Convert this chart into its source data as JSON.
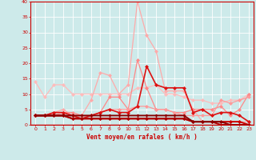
{
  "xlabel": "Vent moyen/en rafales ( km/h )",
  "xlim": [
    -0.5,
    23.5
  ],
  "ylim": [
    0,
    40
  ],
  "yticks": [
    0,
    5,
    10,
    15,
    20,
    25,
    30,
    35,
    40
  ],
  "xticks": [
    0,
    1,
    2,
    3,
    4,
    5,
    6,
    7,
    8,
    9,
    10,
    11,
    12,
    13,
    14,
    15,
    16,
    17,
    18,
    19,
    20,
    21,
    22,
    23
  ],
  "background_color": "#cdeaea",
  "grid_color": "#ffffff",
  "series": [
    {
      "x": [
        0,
        1,
        2,
        3,
        4,
        5,
        6,
        7,
        8,
        9,
        10,
        11,
        12,
        13,
        14,
        15,
        16,
        17,
        18,
        19,
        20,
        21,
        22,
        23
      ],
      "y": [
        14,
        9,
        13,
        13,
        10,
        10,
        10,
        10,
        10,
        10,
        10,
        12,
        12,
        13,
        10,
        10,
        9,
        8,
        8,
        7,
        7,
        8,
        8,
        10
      ],
      "color": "#ffbbbb",
      "lw": 0.9,
      "ms": 2.5
    },
    {
      "x": [
        0,
        1,
        2,
        3,
        4,
        5,
        6,
        7,
        8,
        9,
        10,
        11,
        12,
        13,
        14,
        15,
        16,
        17,
        18,
        19,
        20,
        21,
        22,
        23
      ],
      "y": [
        3,
        3,
        4,
        5,
        3,
        3,
        8,
        17,
        16,
        10,
        13,
        40,
        29,
        24,
        11,
        11,
        11,
        5,
        1,
        1,
        1,
        1,
        1,
        1
      ],
      "color": "#ffaaaa",
      "lw": 0.9,
      "ms": 2.5
    },
    {
      "x": [
        0,
        1,
        2,
        3,
        4,
        5,
        6,
        7,
        8,
        9,
        10,
        11,
        12,
        13,
        14,
        15,
        16,
        17,
        18,
        19,
        20,
        21,
        22,
        23
      ],
      "y": [
        3,
        3,
        4,
        4,
        4,
        3,
        3,
        4,
        9,
        9,
        5,
        21,
        12,
        5,
        5,
        4,
        4,
        5,
        5,
        5,
        6,
        3,
        5,
        10
      ],
      "color": "#ff8888",
      "lw": 0.9,
      "ms": 2.5
    },
    {
      "x": [
        0,
        1,
        2,
        3,
        4,
        5,
        6,
        7,
        8,
        9,
        10,
        11,
        12,
        13,
        14,
        15,
        16,
        17,
        18,
        19,
        20,
        21,
        22,
        23
      ],
      "y": [
        3,
        3,
        3,
        4,
        3,
        3,
        3,
        4,
        5,
        5,
        5,
        6,
        6,
        5,
        5,
        4,
        3,
        3,
        3,
        3,
        8,
        7,
        8,
        9
      ],
      "color": "#ff9999",
      "lw": 0.9,
      "ms": 2.5
    },
    {
      "x": [
        0,
        1,
        2,
        3,
        4,
        5,
        6,
        7,
        8,
        9,
        10,
        11,
        12,
        13,
        14,
        15,
        16,
        17,
        18,
        19,
        20,
        21,
        22,
        23
      ],
      "y": [
        3,
        3,
        4,
        4,
        3,
        2,
        3,
        4,
        5,
        4,
        4,
        6,
        19,
        13,
        12,
        12,
        12,
        4,
        5,
        3,
        4,
        4,
        3,
        1
      ],
      "color": "#dd1111",
      "lw": 1.2,
      "ms": 2.5
    },
    {
      "x": [
        0,
        1,
        2,
        3,
        4,
        5,
        6,
        7,
        8,
        9,
        10,
        11,
        12,
        13,
        14,
        15,
        16,
        17,
        18,
        19,
        20,
        21,
        22,
        23
      ],
      "y": [
        3,
        3,
        3,
        3,
        2,
        2,
        2,
        2,
        2,
        2,
        2,
        2,
        2,
        2,
        2,
        2,
        2,
        1,
        1,
        1,
        1,
        1,
        1,
        0
      ],
      "color": "#cc0000",
      "lw": 1.4,
      "ms": 2.5
    },
    {
      "x": [
        0,
        1,
        2,
        3,
        4,
        5,
        6,
        7,
        8,
        9,
        10,
        11,
        12,
        13,
        14,
        15,
        16,
        17,
        18,
        19,
        20,
        21,
        22,
        23
      ],
      "y": [
        3,
        3,
        3,
        3,
        2,
        2,
        2,
        2,
        2,
        2,
        2,
        2,
        2,
        2,
        2,
        2,
        2,
        1,
        1,
        1,
        0,
        0,
        0,
        0
      ],
      "color": "#aa0000",
      "lw": 1.4,
      "ms": 2.5
    },
    {
      "x": [
        0,
        1,
        2,
        3,
        4,
        5,
        6,
        7,
        8,
        9,
        10,
        11,
        12,
        13,
        14,
        15,
        16,
        17,
        18,
        19,
        20,
        21,
        22,
        23
      ],
      "y": [
        3,
        3,
        3,
        3,
        3,
        3,
        3,
        3,
        3,
        3,
        3,
        3,
        3,
        3,
        3,
        3,
        3,
        1,
        1,
        1,
        1,
        0,
        0,
        0
      ],
      "color": "#880000",
      "lw": 1.4,
      "ms": 2.0
    }
  ]
}
